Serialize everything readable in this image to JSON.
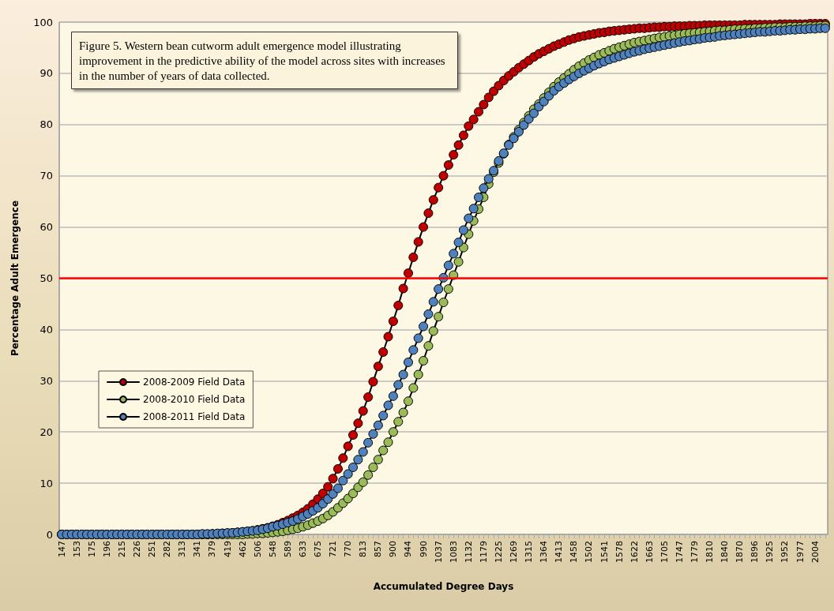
{
  "chart_data": {
    "type": "line",
    "title": "Figure 5. Western bean cutworm adult emergence model illustrating improvement in the predictive ability of the model across sites with increases in the number of years of data collected.",
    "xlabel": "Accumulated Degree Days",
    "ylabel": "Percentage Adult Emergence",
    "categories": [
      "147",
      null,
      null,
      "153",
      null,
      null,
      "175",
      null,
      null,
      "196",
      null,
      null,
      "215",
      null,
      null,
      "226",
      null,
      null,
      "251",
      null,
      null,
      "282",
      null,
      null,
      "313",
      null,
      null,
      "341",
      null,
      null,
      "379",
      null,
      null,
      "419",
      null,
      null,
      "462",
      null,
      null,
      "506",
      null,
      null,
      "548",
      null,
      null,
      "589",
      null,
      null,
      "633",
      null,
      null,
      "675",
      null,
      null,
      "721",
      null,
      null,
      "770",
      null,
      null,
      "813",
      null,
      null,
      "857",
      null,
      null,
      "900",
      null,
      null,
      "944",
      null,
      null,
      "990",
      null,
      null,
      "1037",
      null,
      null,
      "1083",
      null,
      null,
      "1132",
      null,
      null,
      "1179",
      null,
      null,
      "1225",
      null,
      null,
      "1269",
      null,
      null,
      "1315",
      null,
      null,
      "1364",
      null,
      null,
      "1413",
      null,
      null,
      "1458",
      null,
      null,
      "1502",
      null,
      null,
      "1541",
      null,
      null,
      "1578",
      null,
      null,
      "1622",
      null,
      null,
      "1663",
      null,
      null,
      "1705",
      null,
      null,
      "1747",
      null,
      null,
      "1779",
      null,
      null,
      "1810",
      null,
      null,
      "1840",
      null,
      null,
      "1870",
      null,
      null,
      "1896",
      null,
      null,
      "1925",
      null,
      null,
      "1952",
      null,
      null,
      "1977",
      null,
      null,
      "2004",
      null,
      null
    ],
    "series": [
      {
        "name": "2008-2009 Field Data",
        "color": "#c00000",
        "values": [
          0,
          0,
          0,
          0,
          0,
          0,
          0,
          0,
          0,
          0,
          0,
          0,
          0,
          0,
          0,
          0,
          0,
          0,
          0,
          0,
          0,
          0,
          0,
          0,
          0,
          0,
          0,
          0,
          0,
          0,
          0.1,
          0.1,
          0.2,
          0.2,
          0.3,
          0.4,
          0.5,
          0.6,
          0.7,
          0.9,
          1.1,
          1.3,
          1.6,
          1.9,
          2.3,
          2.7,
          3.2,
          3.7,
          4.3,
          5.0,
          5.9,
          6.9,
          8.0,
          9.3,
          10.9,
          12.8,
          14.9,
          17.2,
          19.4,
          21.7,
          24.1,
          26.8,
          29.8,
          32.8,
          35.6,
          38.6,
          41.6,
          44.7,
          48.0,
          51.0,
          54.1,
          57.1,
          60.0,
          62.7,
          65.3,
          67.7,
          70.0,
          72.1,
          74.1,
          76.0,
          77.9,
          79.7,
          81.0,
          82.5,
          83.9,
          85.3,
          86.5,
          87.6,
          88.6,
          89.5,
          90.3,
          91.1,
          91.8,
          92.5,
          93.2,
          93.8,
          94.3,
          94.8,
          95.3,
          95.7,
          96.1,
          96.5,
          96.8,
          97.1,
          97.3,
          97.5,
          97.7,
          97.9,
          98.0,
          98.2,
          98.3,
          98.4,
          98.5,
          98.6,
          98.7,
          98.8,
          98.8,
          98.9,
          99.0,
          99.0,
          99.1,
          99.1,
          99.2,
          99.2,
          99.2,
          99.3,
          99.3,
          99.3,
          99.4,
          99.4,
          99.4,
          99.4,
          99.4,
          99.4,
          99.4,
          99.4,
          99.5,
          99.5,
          99.5,
          99.5,
          99.5,
          99.5,
          99.5,
          99.6,
          99.6,
          99.6,
          99.6,
          99.6,
          99.6,
          99.7,
          99.7,
          99.7,
          99.7
        ]
      },
      {
        "name": "2008-2010 Field Data",
        "color": "#9bbb59",
        "values": [
          0,
          0,
          0,
          0,
          0,
          0,
          0,
          0,
          0,
          0,
          0,
          0,
          0,
          0,
          0,
          0,
          0,
          0,
          0,
          0,
          0,
          0,
          0,
          0,
          0,
          0,
          0,
          0,
          0,
          0,
          0,
          0,
          0,
          0,
          0,
          0,
          0,
          0.1,
          0.1,
          0.2,
          0.2,
          0.3,
          0.4,
          0.5,
          0.6,
          0.8,
          1.0,
          1.2,
          1.5,
          1.8,
          2.2,
          2.6,
          3.1,
          3.7,
          4.4,
          5.2,
          6.1,
          7.0,
          8.0,
          9.2,
          10.2,
          11.6,
          13.1,
          14.6,
          16.4,
          18.0,
          20.0,
          22.0,
          23.8,
          26.0,
          28.6,
          31.2,
          33.9,
          36.8,
          39.7,
          42.5,
          45.3,
          47.9,
          50.6,
          53.2,
          56.0,
          58.6,
          61.2,
          63.5,
          65.8,
          68.4,
          70.7,
          72.5,
          74.3,
          76.1,
          77.6,
          79.0,
          80.4,
          81.7,
          83.0,
          84.0,
          85.2,
          86.3,
          87.4,
          88.3,
          89.1,
          89.9,
          90.7,
          91.4,
          92.0,
          92.6,
          93.1,
          93.6,
          94.0,
          94.4,
          94.8,
          95.1,
          95.4,
          95.7,
          96.0,
          96.2,
          96.4,
          96.6,
          96.8,
          97.0,
          97.1,
          97.3,
          97.4,
          97.6,
          97.7,
          97.8,
          97.9,
          98.0,
          98.1,
          98.2,
          98.3,
          98.4,
          98.4,
          98.5,
          98.6,
          98.6,
          98.7,
          98.7,
          98.8,
          98.8,
          98.9,
          98.9,
          99.0,
          99.0,
          99.0,
          99.1,
          99.1,
          99.1,
          99.2,
          99.2,
          99.2,
          99.3,
          99.3
        ]
      },
      {
        "name": "2008-2011 Field Data",
        "color": "#4f81bd",
        "values": [
          0,
          0,
          0,
          0,
          0,
          0,
          0,
          0,
          0,
          0,
          0,
          0,
          0,
          0,
          0,
          0,
          0,
          0,
          0,
          0,
          0,
          0,
          0,
          0,
          0,
          0,
          0,
          0,
          0.1,
          0.1,
          0.1,
          0.2,
          0.2,
          0.3,
          0.3,
          0.4,
          0.5,
          0.6,
          0.7,
          0.8,
          1.0,
          1.2,
          1.5,
          1.7,
          2.0,
          2.3,
          2.6,
          3.0,
          3.5,
          4.0,
          4.6,
          5.2,
          6.0,
          6.9,
          7.9,
          9.0,
          10.5,
          11.8,
          13.1,
          14.6,
          16.1,
          17.9,
          19.6,
          21.3,
          23.2,
          25.2,
          27.0,
          29.2,
          31.2,
          33.6,
          36.0,
          38.3,
          40.6,
          43.0,
          45.4,
          47.9,
          50.1,
          52.5,
          54.8,
          57.0,
          59.4,
          61.7,
          63.6,
          65.8,
          67.6,
          69.4,
          71.0,
          72.9,
          74.4,
          76.0,
          77.3,
          78.6,
          79.9,
          81.1,
          82.2,
          83.5,
          84.5,
          85.6,
          86.6,
          87.4,
          88.1,
          88.8,
          89.4,
          90.0,
          90.5,
          91.0,
          91.5,
          91.9,
          92.3,
          92.7,
          93.0,
          93.3,
          93.6,
          93.9,
          94.2,
          94.4,
          94.7,
          94.9,
          95.1,
          95.3,
          95.5,
          95.7,
          95.9,
          96.1,
          96.3,
          96.4,
          96.6,
          96.7,
          96.9,
          97.0,
          97.1,
          97.3,
          97.4,
          97.5,
          97.6,
          97.7,
          97.8,
          97.9,
          98.0,
          98.1,
          98.1,
          98.2,
          98.3,
          98.3,
          98.4,
          98.5,
          98.5,
          98.6,
          98.6,
          98.7,
          98.7,
          98.8,
          98.8
        ]
      }
    ],
    "ylim": [
      0,
      100
    ],
    "yticks": [
      0,
      10,
      20,
      30,
      40,
      50,
      60,
      70,
      80,
      90,
      100
    ],
    "ref_lines": [
      {
        "axis": "y",
        "value": 50,
        "color": "#ff0000"
      }
    ],
    "grid": "y",
    "legend": "left",
    "marker": "circle",
    "line_style": "solid"
  }
}
